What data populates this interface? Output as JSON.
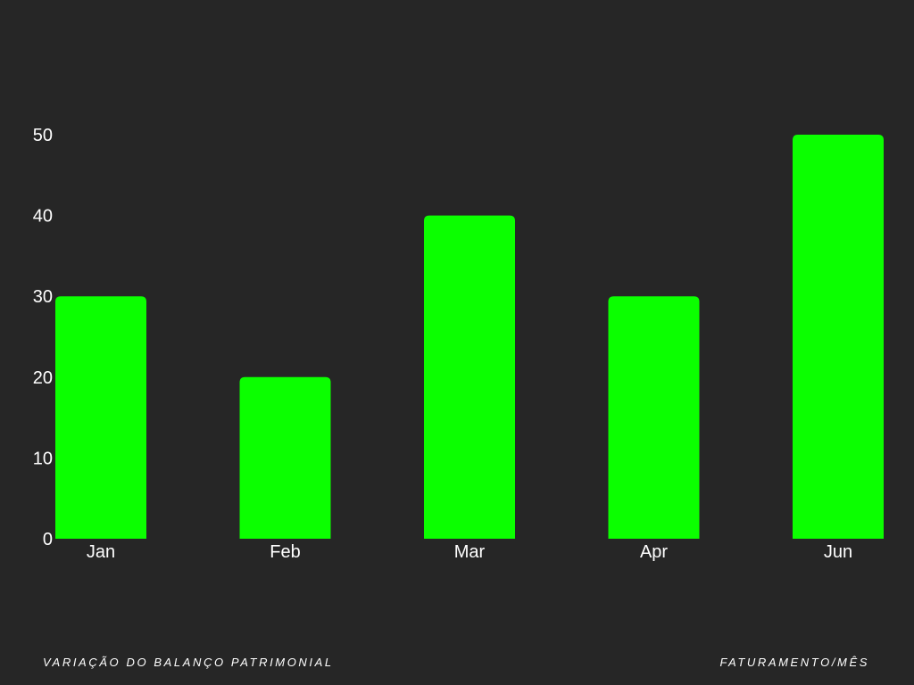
{
  "chart_data": {
    "type": "bar",
    "title": "",
    "xlabel": "",
    "ylabel": "",
    "categories": [
      "Jan",
      "Feb",
      "Mar",
      "Apr",
      "Jun"
    ],
    "values": [
      30,
      20,
      40,
      30,
      50
    ],
    "ylim": [
      0,
      50
    ],
    "yticks": [
      0,
      10,
      20,
      30,
      40,
      50
    ],
    "grid": false,
    "bar_color": "#0bff00",
    "background_color": "#262626",
    "text_color": "#ffffff"
  },
  "footer": {
    "left_text": "VARIAÇÃO DO BALANÇO PATRIMONIAL",
    "right_text": "FATURAMENTO/MÊS"
  }
}
